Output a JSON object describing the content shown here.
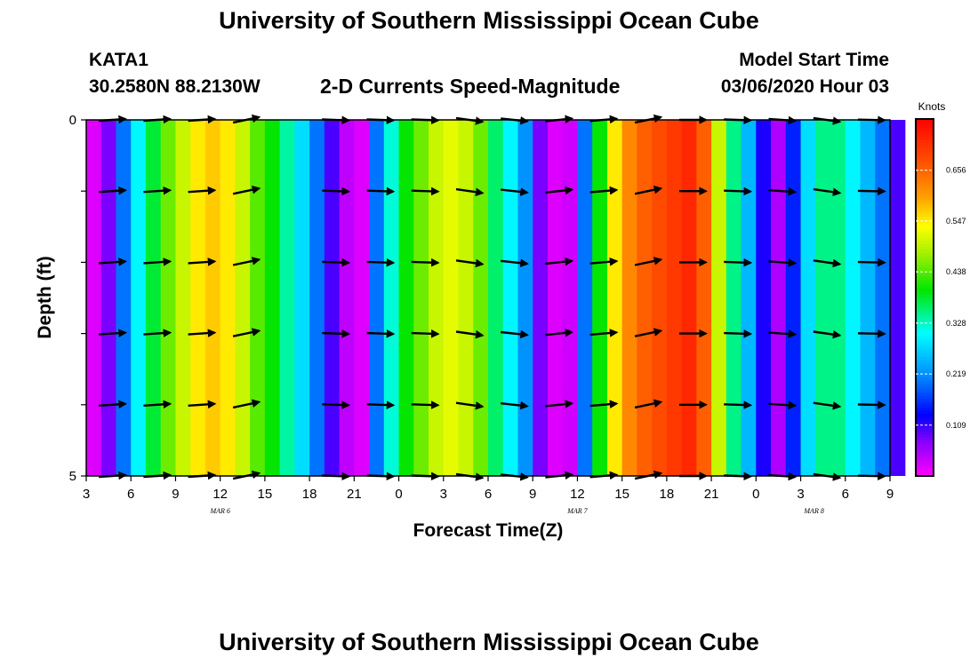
{
  "header": {
    "title_top": "University of Southern Mississippi Ocean Cube",
    "station_id": "KATA1",
    "coordinates": "30.2580N 88.2130W",
    "subtitle": "2-D Currents Speed-Magnitude",
    "model_start_label": "Model Start Time",
    "model_start_value": "03/06/2020 Hour 03",
    "title_bottom": "University of Southern Mississippi Ocean Cube"
  },
  "chart_data": {
    "type": "heatmap",
    "title": "2-D Currents Speed-Magnitude",
    "xlabel": "Forecast Time(Z)",
    "ylabel": "Depth (ft)",
    "colorbar_unit": "Knots",
    "x_tick_labels": [
      "3",
      "6",
      "9",
      "12",
      "15",
      "18",
      "21",
      "0",
      "3",
      "6",
      "9",
      "12",
      "15",
      "18",
      "21",
      "0",
      "3",
      "6",
      "9"
    ],
    "date_labels": [
      {
        "text": "MAR 6",
        "x_index": 3
      },
      {
        "text": "MAR 7",
        "x_index": 11
      },
      {
        "text": "MAR 8",
        "x_index": 16.3
      }
    ],
    "y_tick_labels": [
      "0",
      "5"
    ],
    "ylim": [
      0,
      5
    ],
    "colorbar_ticks": [
      0.109,
      0.219,
      0.328,
      0.438,
      0.547,
      0.656
    ],
    "colorbar_range": [
      0.0,
      0.766
    ],
    "hours_from_start": [
      0,
      1,
      2,
      3,
      4,
      5,
      6,
      7,
      8,
      9,
      10,
      11,
      12,
      13,
      14,
      15,
      16,
      17,
      18,
      19,
      20,
      21,
      22,
      23,
      24,
      25,
      26,
      27,
      28,
      29,
      30,
      31,
      32,
      33,
      34,
      35,
      36,
      37,
      38,
      39,
      40,
      41,
      42,
      43,
      44,
      45,
      46,
      47,
      48,
      49,
      50,
      51,
      52,
      53,
      54
    ],
    "speed_knots": [
      0.02,
      0.08,
      0.2,
      0.3,
      0.38,
      0.45,
      0.5,
      0.55,
      0.57,
      0.55,
      0.5,
      0.44,
      0.4,
      0.34,
      0.28,
      0.2,
      0.1,
      0.04,
      0.02,
      0.2,
      0.32,
      0.4,
      0.45,
      0.5,
      0.52,
      0.5,
      0.45,
      0.36,
      0.3,
      0.22,
      0.08,
      0.02,
      0.03,
      0.2,
      0.4,
      0.55,
      0.62,
      0.66,
      0.68,
      0.7,
      0.72,
      0.66,
      0.5,
      0.35,
      0.25,
      0.12,
      0.05,
      0.15,
      0.28,
      0.35,
      0.35,
      0.3,
      0.25,
      0.2,
      0.1
    ],
    "vector_times_hours": [
      1.5,
      4.5,
      7.5,
      10.5,
      16.5,
      19.5,
      22.5,
      25.5,
      28.5,
      31.5,
      34.5,
      37.5,
      40.5,
      43.5,
      46.5,
      49.5,
      52.5
    ],
    "vector_depth_levels": [
      0,
      1,
      2,
      3,
      4,
      5
    ],
    "vector_angles_deg": [
      4,
      4,
      4,
      12,
      -2,
      -2,
      -2,
      -8,
      -6,
      6,
      5,
      12,
      0,
      -2,
      -4,
      -8,
      -1
    ]
  }
}
